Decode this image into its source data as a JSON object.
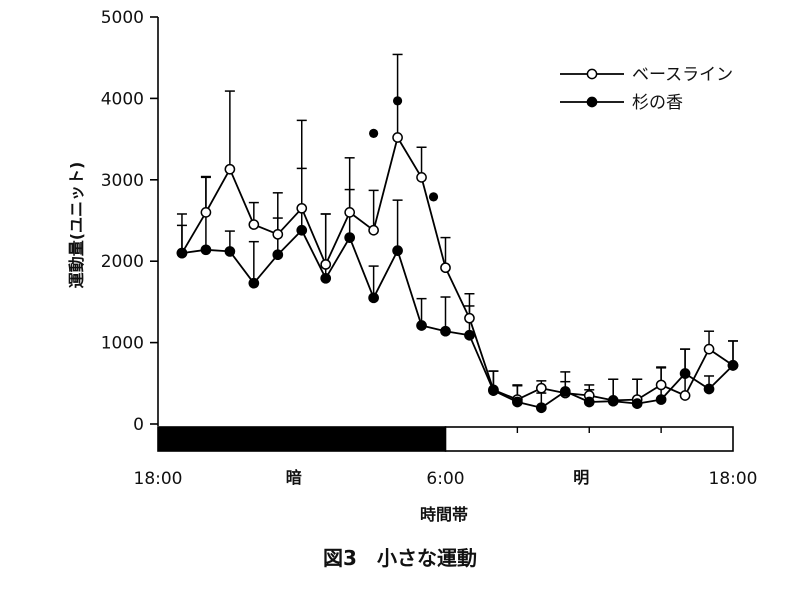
{
  "figure_title": "図3　小さな運動",
  "chart_data": {
    "type": "line",
    "ylabel": "運動量(ユニット)",
    "xlabel": "時間帯",
    "ylim": [
      0,
      5000
    ],
    "yticks": [
      0,
      1000,
      2000,
      3000,
      4000,
      5000
    ],
    "x_tick_labels": [
      "18:00",
      "6:00",
      "18:00"
    ],
    "x_tick_positions": [
      0,
      12,
      24
    ],
    "x": [
      1,
      2,
      3,
      4,
      5,
      6,
      7,
      8,
      9,
      10,
      11,
      12,
      13,
      14,
      15,
      16,
      17,
      18,
      19,
      20,
      21,
      22,
      23,
      24
    ],
    "legend_position": "top-right",
    "series": [
      {
        "name": "ベースライン",
        "marker": "open-circle",
        "values": [
          2100,
          2600,
          3130,
          2450,
          2330,
          2650,
          1960,
          2600,
          2380,
          3520,
          3030,
          1920,
          1300,
          420,
          300,
          440,
          380,
          350,
          290,
          300,
          480,
          350,
          920,
          720
        ],
        "error_top": [
          2580,
          3030,
          4090,
          2720,
          2840,
          3730,
          2580,
          3270,
          2870,
          4540,
          3400,
          2290,
          1600,
          650,
          480,
          530,
          640,
          480,
          550,
          550,
          690,
          920,
          1140,
          1020
        ]
      },
      {
        "name": "杉の香",
        "marker": "filled-circle",
        "values": [
          2100,
          2140,
          2120,
          1730,
          2080,
          2380,
          1790,
          2290,
          1550,
          2130,
          1210,
          1140,
          1090,
          410,
          270,
          200,
          400,
          270,
          280,
          250,
          300,
          620,
          430,
          720
        ],
        "error_top": [
          2440,
          3040,
          2370,
          2240,
          2530,
          3140,
          2580,
          2880,
          1940,
          2750,
          1540,
          1560,
          1450,
          650,
          470,
          380,
          520,
          420,
          550,
          550,
          700,
          920,
          590,
          1020
        ]
      }
    ],
    "significance_markers": [
      {
        "x": 9,
        "y": 3570
      },
      {
        "x": 10,
        "y": 3970
      },
      {
        "x": 11.5,
        "y": 2790
      }
    ],
    "light_dark_bar": [
      {
        "from": 0,
        "to": 12,
        "label": "暗",
        "fill": "#000000"
      },
      {
        "from": 12,
        "to": 24,
        "label": "明",
        "fill": "#ffffff"
      }
    ]
  },
  "colors": {
    "line": "#000000",
    "text": "#111111"
  }
}
